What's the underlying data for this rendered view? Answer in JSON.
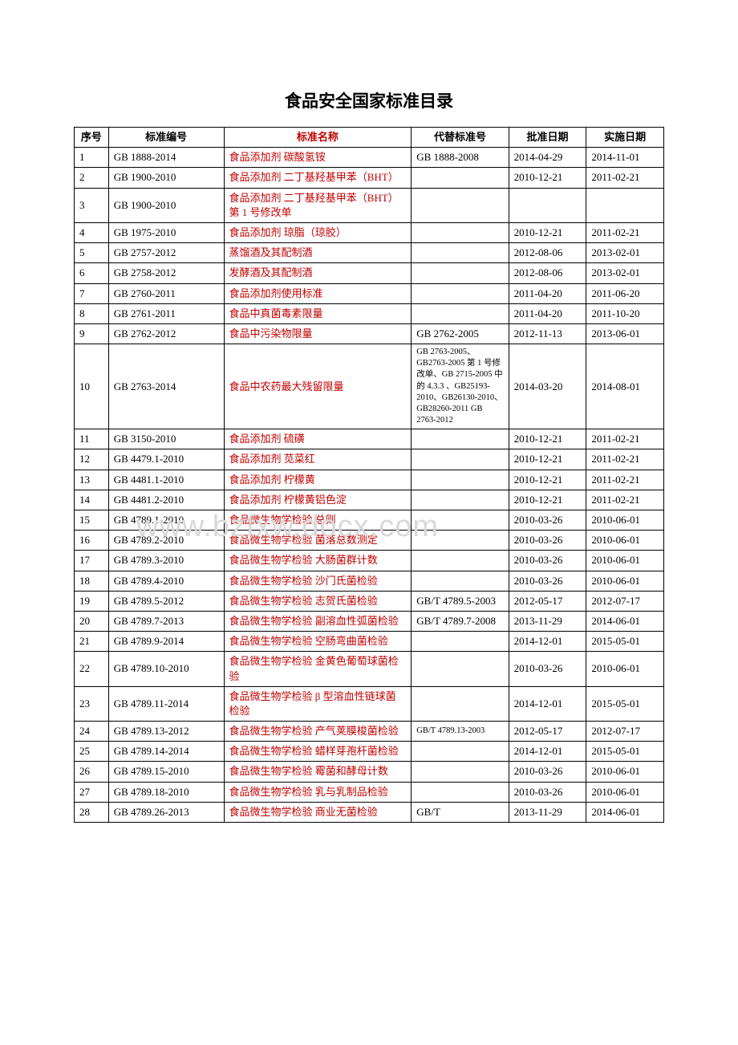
{
  "title": "食品安全国家标准目录",
  "watermark": "www.bzfxw.docx.com",
  "headers": {
    "seq": "序号",
    "code": "标准编号",
    "name": "标准名称",
    "replace": "代替标准号",
    "approve": "批准日期",
    "impl": "实施日期"
  },
  "rows": [
    {
      "seq": "1",
      "code": "GB 1888-2014",
      "name": "食品添加剂  碳酸氢铵",
      "replace": "GB 1888-2008",
      "approve": "2014-04-29",
      "impl": "2014-11-01"
    },
    {
      "seq": "2",
      "code": "GB 1900-2010",
      "name": "食品添加剂  二丁基羟基甲苯（BHT）",
      "replace": "",
      "approve": "2010-12-21",
      "impl": "2011-02-21"
    },
    {
      "seq": "3",
      "code": "GB 1900-2010",
      "name": "食品添加剂  二丁基羟基甲苯（BHT）第 1 号修改单",
      "replace": "",
      "approve": "",
      "impl": ""
    },
    {
      "seq": "4",
      "code": "GB 1975-2010",
      "name": "食品添加剂  琼脂（琼胶）",
      "replace": "",
      "approve": "2010-12-21",
      "impl": "2011-02-21"
    },
    {
      "seq": "5",
      "code": "GB 2757-2012",
      "name": "蒸馏酒及其配制酒",
      "replace": "",
      "approve": "2012-08-06",
      "impl": "2013-02-01"
    },
    {
      "seq": "6",
      "code": "GB 2758-2012",
      "name": "发酵酒及其配制酒",
      "replace": "",
      "approve": "2012-08-06",
      "impl": "2013-02-01"
    },
    {
      "seq": "7",
      "code": "GB 2760-2011",
      "name": "食品添加剂使用标准",
      "replace": "",
      "approve": "2011-04-20",
      "impl": "2011-06-20"
    },
    {
      "seq": "8",
      "code": "GB 2761-2011",
      "name": "食品中真菌毒素限量",
      "replace": "",
      "approve": "2011-04-20",
      "impl": "2011-10-20"
    },
    {
      "seq": "9",
      "code": "GB 2762-2012",
      "name": "食品中污染物限量",
      "replace": "GB 2762-2005",
      "approve": "2012-11-13",
      "impl": "2013-06-01"
    },
    {
      "seq": "10",
      "code": "GB 2763-2014",
      "name": "食品中农药最大残留限量",
      "replace": "GB 2763-2005、GB2763-2005 第 1 号修改单、GB 2715-2005 中的 4.3.3        、GB25193-2010、GB26130-2010、GB28260-2011 GB 2763-2012",
      "approve": "2014-03-20",
      "impl": "2014-08-01",
      "smallReplace": true
    },
    {
      "seq": "11",
      "code": "GB 3150-2010",
      "name": "食品添加剂  硫磺",
      "replace": "",
      "approve": "2010-12-21",
      "impl": "2011-02-21"
    },
    {
      "seq": "12",
      "code": "GB 4479.1-2010",
      "name": "食品添加剂  苋菜红",
      "replace": "",
      "approve": "2010-12-21",
      "impl": "2011-02-21"
    },
    {
      "seq": "13",
      "code": "GB 4481.1-2010",
      "name": "食品添加剂  柠檬黄",
      "replace": "",
      "approve": "2010-12-21",
      "impl": "2011-02-21"
    },
    {
      "seq": "14",
      "code": "GB 4481.2-2010",
      "name": "食品添加剂  柠檬黄铝色淀",
      "replace": "",
      "approve": "2010-12-21",
      "impl": "2011-02-21"
    },
    {
      "seq": "15",
      "code": "GB 4789.1-2010",
      "name": "食品微生物学检验  总则",
      "replace": "",
      "approve": "2010-03-26",
      "impl": "2010-06-01"
    },
    {
      "seq": "16",
      "code": "GB 4789.2-2010",
      "name": "食品微生物学检验  菌落总数测定",
      "replace": "",
      "approve": "2010-03-26",
      "impl": "2010-06-01"
    },
    {
      "seq": "17",
      "code": "GB 4789.3-2010",
      "name": "食品微生物学检验  大肠菌群计数",
      "replace": "",
      "approve": "2010-03-26",
      "impl": "2010-06-01"
    },
    {
      "seq": "18",
      "code": "GB 4789.4-2010",
      "name": "食品微生物学检验  沙门氏菌检验",
      "replace": "",
      "approve": "2010-03-26",
      "impl": "2010-06-01"
    },
    {
      "seq": "19",
      "code": "GB 4789.5-2012",
      "name": "食品微生物学检验  志贺氏菌检验",
      "replace": "GB/T 4789.5-2003",
      "approve": "2012-05-17",
      "impl": "2012-07-17"
    },
    {
      "seq": "20",
      "code": "GB 4789.7-2013",
      "name": "食品微生物学检验    副溶血性弧菌检验",
      "replace": "GB/T 4789.7-2008",
      "approve": "2013-11-29",
      "impl": "2014-06-01"
    },
    {
      "seq": "21",
      "code": "GB 4789.9-2014",
      "name": "食品微生物学检验  空肠弯曲菌检验",
      "replace": "",
      "approve": "2014-12-01",
      "impl": "2015-05-01"
    },
    {
      "seq": "22",
      "code": "GB 4789.10-2010",
      "name": "食品微生物学检验  金黄色葡萄球菌检验",
      "replace": "",
      "approve": "2010-03-26",
      "impl": "2010-06-01"
    },
    {
      "seq": "23",
      "code": "GB 4789.11-2014",
      "name": "食品微生物学检验  β 型溶血性链球菌检验",
      "replace": "",
      "approve": "2014-12-01",
      "impl": "2015-05-01"
    },
    {
      "seq": "24",
      "code": "GB 4789.13-2012",
      "name": "食品微生物学检验  产气荚膜梭菌检验",
      "replace": "GB/T 4789.13-2003",
      "approve": "2012-05-17",
      "impl": "2012-07-17",
      "smallReplace": true
    },
    {
      "seq": "25",
      "code": "GB 4789.14-2014",
      "name": "食品微生物学检验  蜡样芽孢杆菌检验",
      "replace": "",
      "approve": "2014-12-01",
      "impl": "2015-05-01"
    },
    {
      "seq": "26",
      "code": "GB 4789.15-2010",
      "name": "食品微生物学检验  霉菌和酵母计数",
      "replace": "",
      "approve": "2010-03-26",
      "impl": "2010-06-01"
    },
    {
      "seq": "27",
      "code": "GB 4789.18-2010",
      "name": "食品微生物学检验  乳与乳制品检验",
      "replace": "",
      "approve": "2010-03-26",
      "impl": "2010-06-01"
    },
    {
      "seq": "28",
      "code": "GB 4789.26-2013",
      "name": "食品微生物学检验    商业无菌检验",
      "replace": "GB/T",
      "approve": "2013-11-29",
      "impl": "2014-06-01"
    }
  ],
  "colors": {
    "text_black": "#000000",
    "text_red": "#c00000",
    "border": "#000000",
    "background": "#ffffff",
    "watermark": "#d9d9d9"
  }
}
